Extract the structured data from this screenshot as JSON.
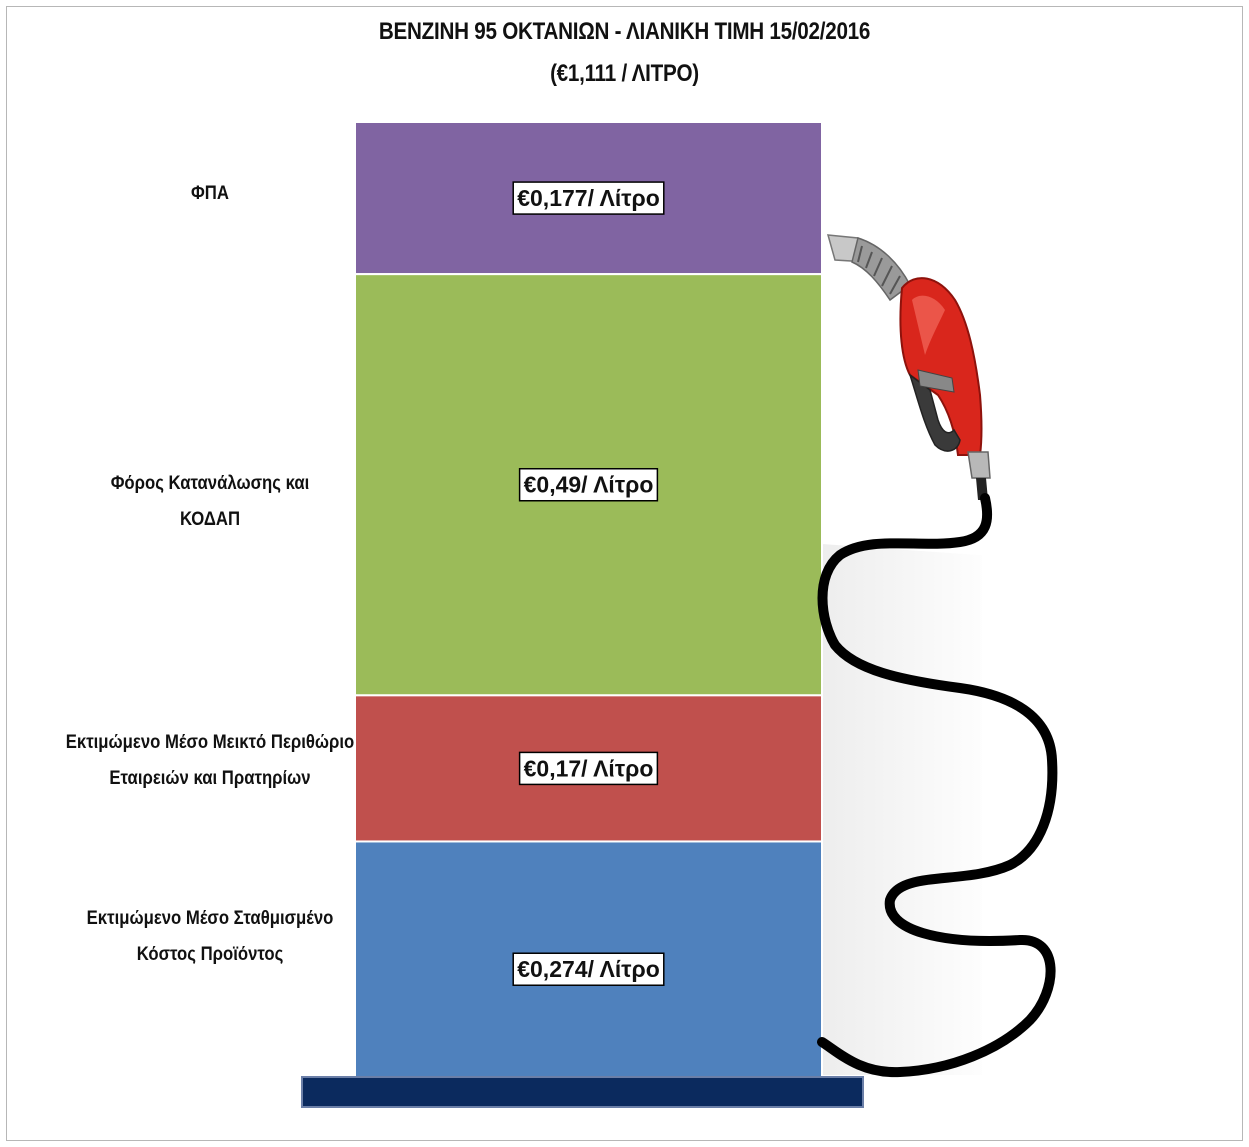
{
  "chart_data": {
    "type": "bar",
    "stacked": true,
    "title": "BENZINH 95 ΟΚΤΑΝΙΩΝ - ΛΙΑΝΙΚΗ ΤΙΜΗ 15/02/2016",
    "subtitle": "(€1,111 / ΛΙΤΡΟ)",
    "total": 1.111,
    "segments": [
      {
        "label": "ΦΠΑ",
        "value": 0.177,
        "value_label": "€0,177/ Λίτρο",
        "color": "#8064a2"
      },
      {
        "label": "Φόρος Κατανάλωσης και\nΚΟΔΑΠ",
        "value": 0.49,
        "value_label": "€0,49/ Λίτρο",
        "color": "#9bbb59"
      },
      {
        "label": "Εκτιμώμενο Μέσο Μεικτό Περιθώριο\nΕταιρειών και Πρατηρίων",
        "value": 0.17,
        "value_label": "€0,17/ Λίτρο",
        "color": "#c0504d"
      },
      {
        "label": "Εκτιμώμενο Μέσο Σταθμισμένο\nΚόστος Προϊόντος",
        "value": 0.274,
        "value_label": "€0,274/ Λίτρο",
        "color": "#4f81bd"
      }
    ],
    "base_color": "#0b2a5e"
  }
}
